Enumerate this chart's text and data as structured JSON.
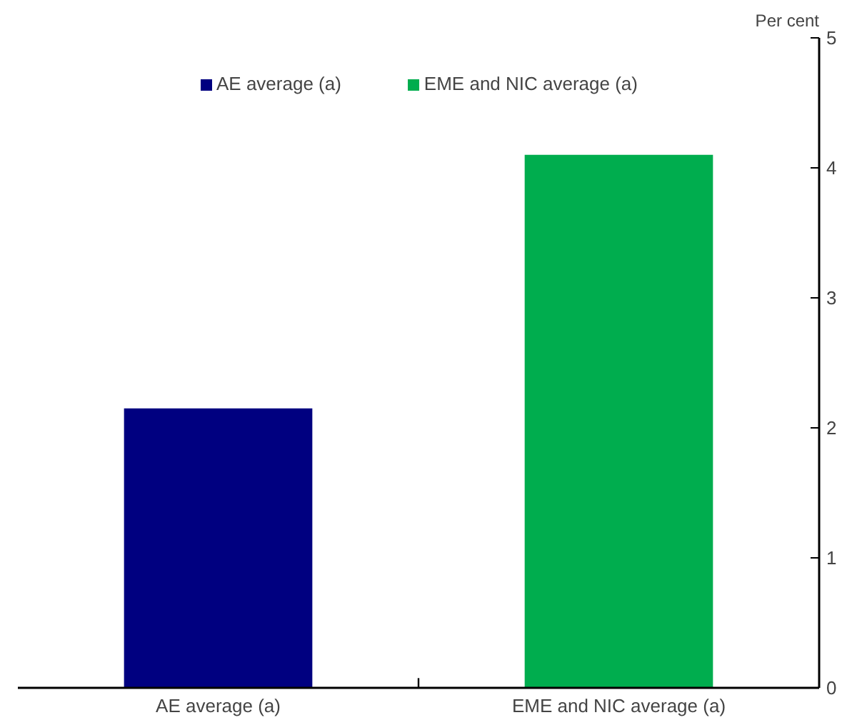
{
  "chart_data": {
    "type": "bar",
    "ylabel": "Per cent",
    "categories": [
      "AE average (a)",
      "EME and NIC average (a)"
    ],
    "series": [
      {
        "name": "AE average (a)",
        "color": "#000080",
        "values": [
          2.15,
          null
        ]
      },
      {
        "name": "EME and NIC average (a)",
        "color": "#00ad4e",
        "values": [
          null,
          4.1
        ]
      }
    ],
    "ylim": [
      0,
      5
    ],
    "yticks": [
      0,
      1,
      2,
      3,
      4,
      5
    ],
    "legend": "top",
    "grid": false
  }
}
